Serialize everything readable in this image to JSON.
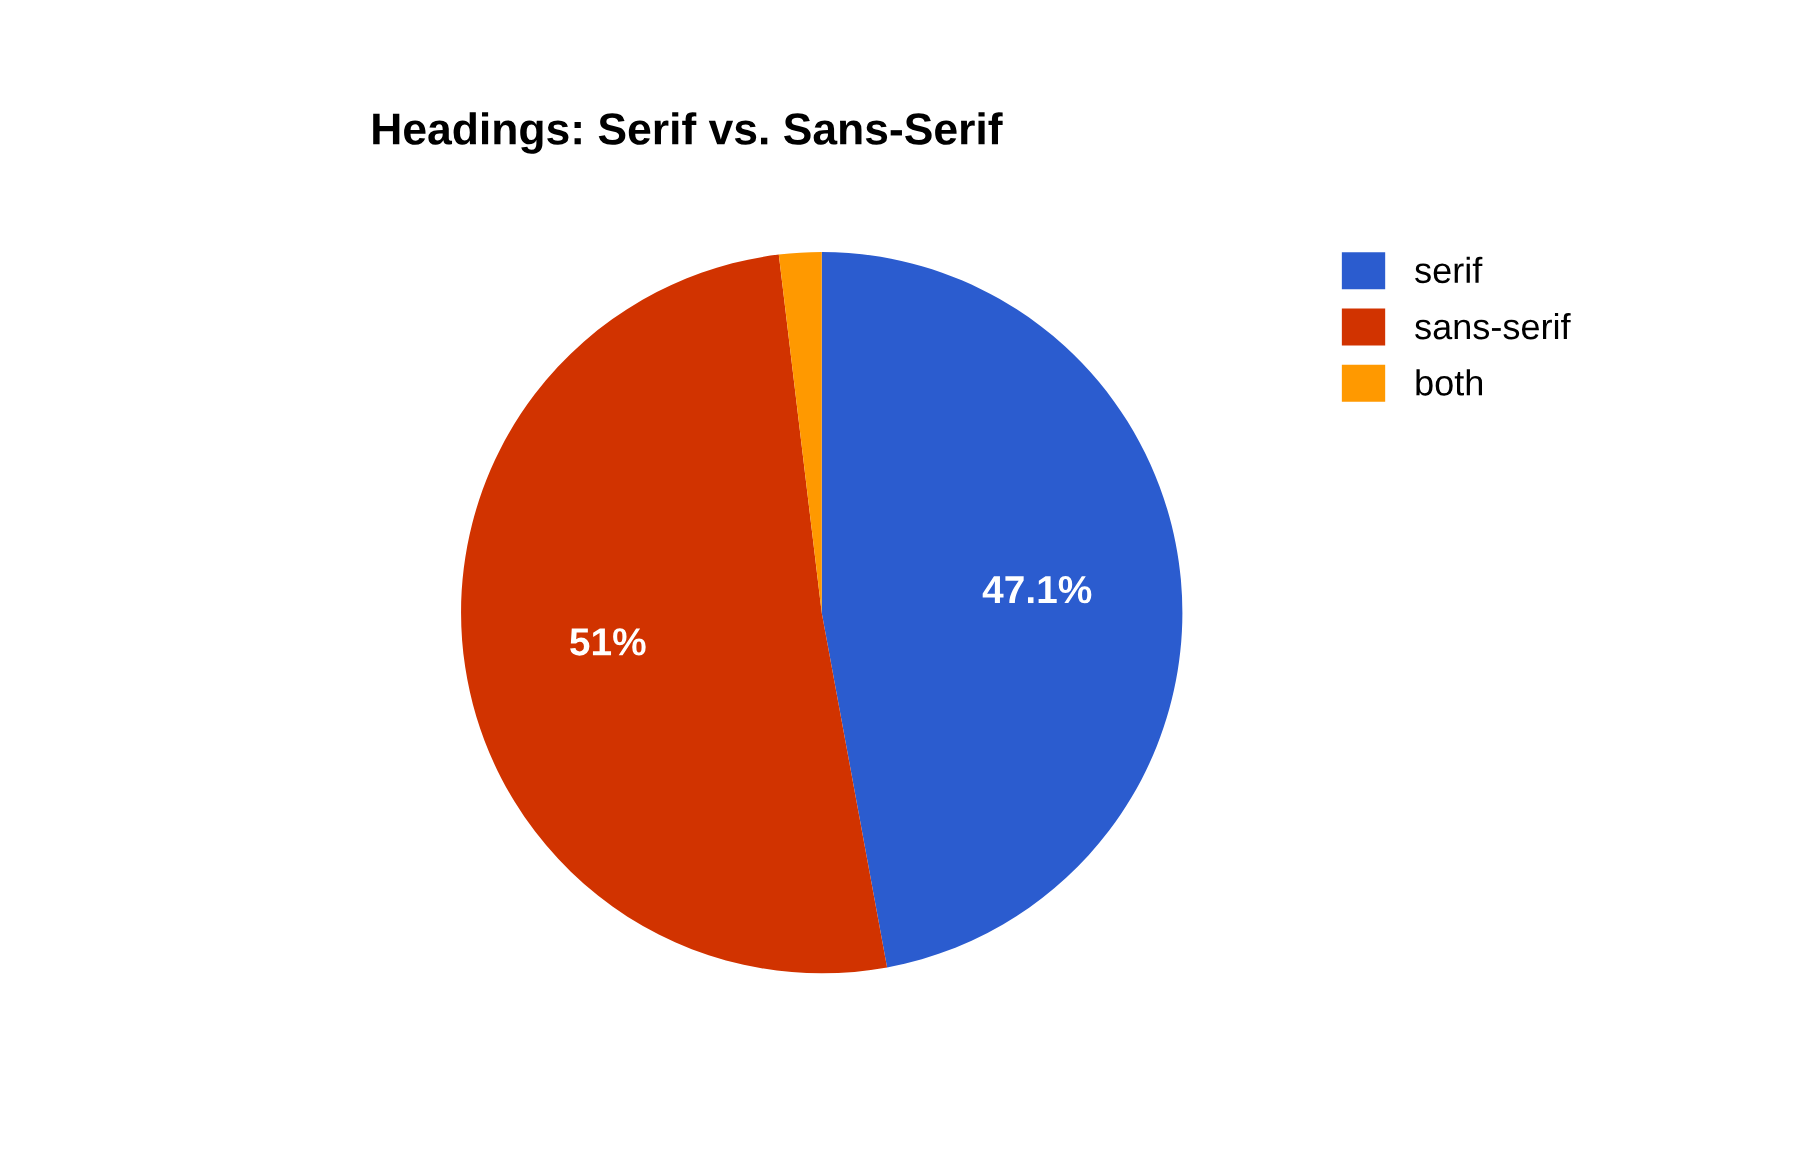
{
  "chart_data": {
    "type": "pie",
    "title": "Headings: Serif vs. Sans-Serif",
    "categories": [
      "serif",
      "sans-serif",
      "both"
    ],
    "values": [
      47.1,
      51,
      1.9
    ],
    "colors": [
      "#2b5ccf",
      "#d13300",
      "#ff9900"
    ],
    "value_labels": [
      "47.1%",
      "51%",
      null
    ],
    "legend": "top right"
  }
}
